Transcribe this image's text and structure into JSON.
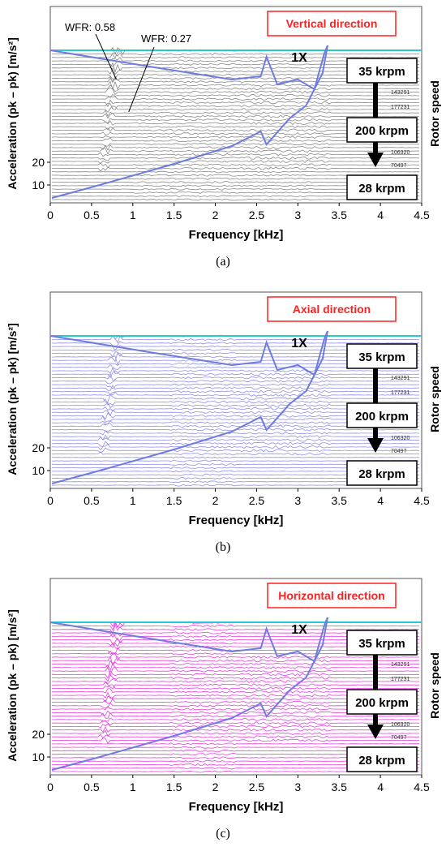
{
  "figure": {
    "panels": [
      {
        "caption": "(a)",
        "direction_label": "Vertical direction",
        "trace_color": "#8a8a8a",
        "show_wfr": true
      },
      {
        "caption": "(b)",
        "direction_label": "Axial direction",
        "trace_color": "#8f8fe8",
        "show_wfr": false
      },
      {
        "caption": "(c)",
        "direction_label": "Horizontal direction",
        "trace_color": "#e63fe0",
        "show_wfr": false
      }
    ],
    "common": {
      "xlabel": "Frequency [kHz]",
      "ylabel": "Acceleration (pk – pk) [m/s²]",
      "right_label": "Rotor speed",
      "speed_top": "35 krpm",
      "speed_mid": "200 krpm",
      "speed_bottom": "28 krpm",
      "order_label": "1X",
      "rpm_tags": [
        "143291",
        "177231",
        "106320",
        "70497"
      ],
      "wfr_labels": [
        "WFR: 0.58",
        "WFR: 0.27"
      ],
      "envelope_color": "#6e7be0",
      "label_box_color": "#ff2020",
      "top_line_color": "#29c7d6"
    }
  },
  "chart_data": {
    "type": "waterfall",
    "x": {
      "label": "Frequency [kHz]",
      "lim": [
        0,
        4.5
      ],
      "ticks": [
        0,
        0.5,
        1.0,
        1.5,
        2.0,
        2.5,
        3.0,
        3.5,
        4.0,
        4.5
      ]
    },
    "y": {
      "label": "Acceleration (pk – pk) [m/s²]",
      "ticks": [
        10,
        20
      ]
    },
    "series_direction": [
      "Vertical direction",
      "Axial direction",
      "Horizontal direction"
    ],
    "rotor_speed_krpm": {
      "start": 35,
      "peak": 200,
      "end": 28
    },
    "subsynchronous_whirl": [
      {
        "label": "WFR: 0.58",
        "freq_khz": 0.85
      },
      {
        "label": "WFR: 0.27",
        "freq_khz": 0.9
      }
    ],
    "synchronous_1x_peak_khz": 3.35
  }
}
